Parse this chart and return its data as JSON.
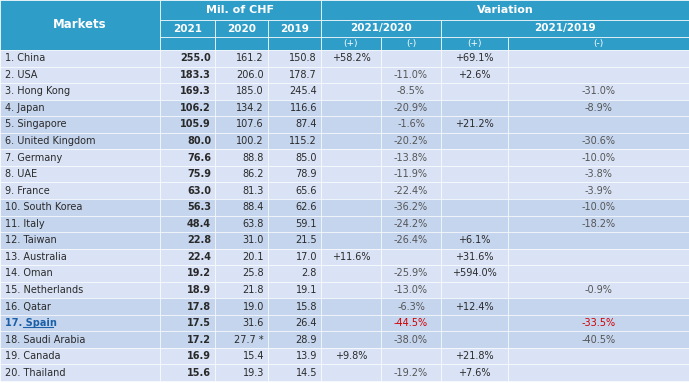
{
  "header_bg": "#2E9DC8",
  "header_text": "#ffffff",
  "row_bg_a": "#d9e3f5",
  "row_bg_b": "#c5d5ee",
  "highlight_market_color": "#1a5fa8",
  "neg_highlight_color": "#d00000",
  "dark_text": "#2a2a2a",
  "mid_text": "#444444",
  "markets": [
    "1. China",
    "2. USA",
    "3. Hong Kong",
    "4. Japan",
    "5. Singapore",
    "6. United Kingdom",
    "7. Germany",
    "8. UAE",
    "9. France",
    "10. South Korea",
    "11. Italy",
    "12. Taiwan",
    "13. Australia",
    "14. Oman",
    "15. Netherlands",
    "16. Qatar",
    "17. Spain",
    "18. Saudi Arabia",
    "19. Canada",
    "20. Thailand"
  ],
  "v2021": [
    "255.0",
    "183.3",
    "169.3",
    "106.2",
    "105.9",
    "80.0",
    "76.6",
    "75.9",
    "63.0",
    "56.3",
    "48.4",
    "22.8",
    "22.4",
    "19.2",
    "18.9",
    "17.8",
    "17.5",
    "17.2",
    "16.9",
    "15.6"
  ],
  "v2020": [
    "161.2",
    "206.0",
    "185.0",
    "134.2",
    "107.6",
    "100.2",
    "88.8",
    "86.2",
    "81.3",
    "88.4",
    "63.8",
    "31.0",
    "20.1",
    "25.8",
    "21.8",
    "19.0",
    "31.6",
    "27.7 *",
    "15.4",
    "19.3"
  ],
  "v2019": [
    "150.8",
    "178.7",
    "245.4",
    "116.6",
    "87.4",
    "115.2",
    "85.0",
    "78.9",
    "65.6",
    "62.6",
    "59.1",
    "21.5",
    "17.0",
    "2.8",
    "19.1",
    "15.8",
    "26.4",
    "28.9",
    "13.9",
    "14.5"
  ],
  "var2020_pos": [
    "+58.2%",
    "",
    "",
    "",
    "",
    "",
    "",
    "",
    "",
    "",
    "",
    "",
    "+11.6%",
    "",
    "",
    "",
    "",
    "",
    "+9.8%",
    ""
  ],
  "var2020_neg": [
    "",
    "-11.0%",
    "-8.5%",
    "-20.9%",
    "-1.6%",
    "-20.2%",
    "-13.8%",
    "-11.9%",
    "-22.4%",
    "-36.2%",
    "-24.2%",
    "-26.4%",
    "",
    "-25.9%",
    "-13.0%",
    "-6.3%",
    "-44.5%",
    "-38.0%",
    "",
    "-19.2%"
  ],
  "var2019_pos": [
    "+69.1%",
    "+2.6%",
    "",
    "",
    "+21.2%",
    "",
    "",
    "",
    "",
    "",
    "",
    "+6.1%",
    "+31.6%",
    "+594.0%",
    "",
    "+12.4%",
    "",
    "",
    "+21.8%",
    "+7.6%"
  ],
  "var2019_neg": [
    "",
    "",
    "-31.0%",
    "-8.9%",
    "",
    "-30.6%",
    "-10.0%",
    "-3.8%",
    "-3.9%",
    "-10.0%",
    "-18.2%",
    "",
    "",
    "",
    "-0.9%",
    "",
    "-33.5%",
    "-40.5%",
    "",
    ""
  ],
  "row_group": [
    0,
    0,
    0,
    1,
    1,
    1,
    0,
    0,
    0,
    1,
    1,
    1,
    0,
    0,
    0,
    1,
    1,
    1,
    0,
    0
  ]
}
